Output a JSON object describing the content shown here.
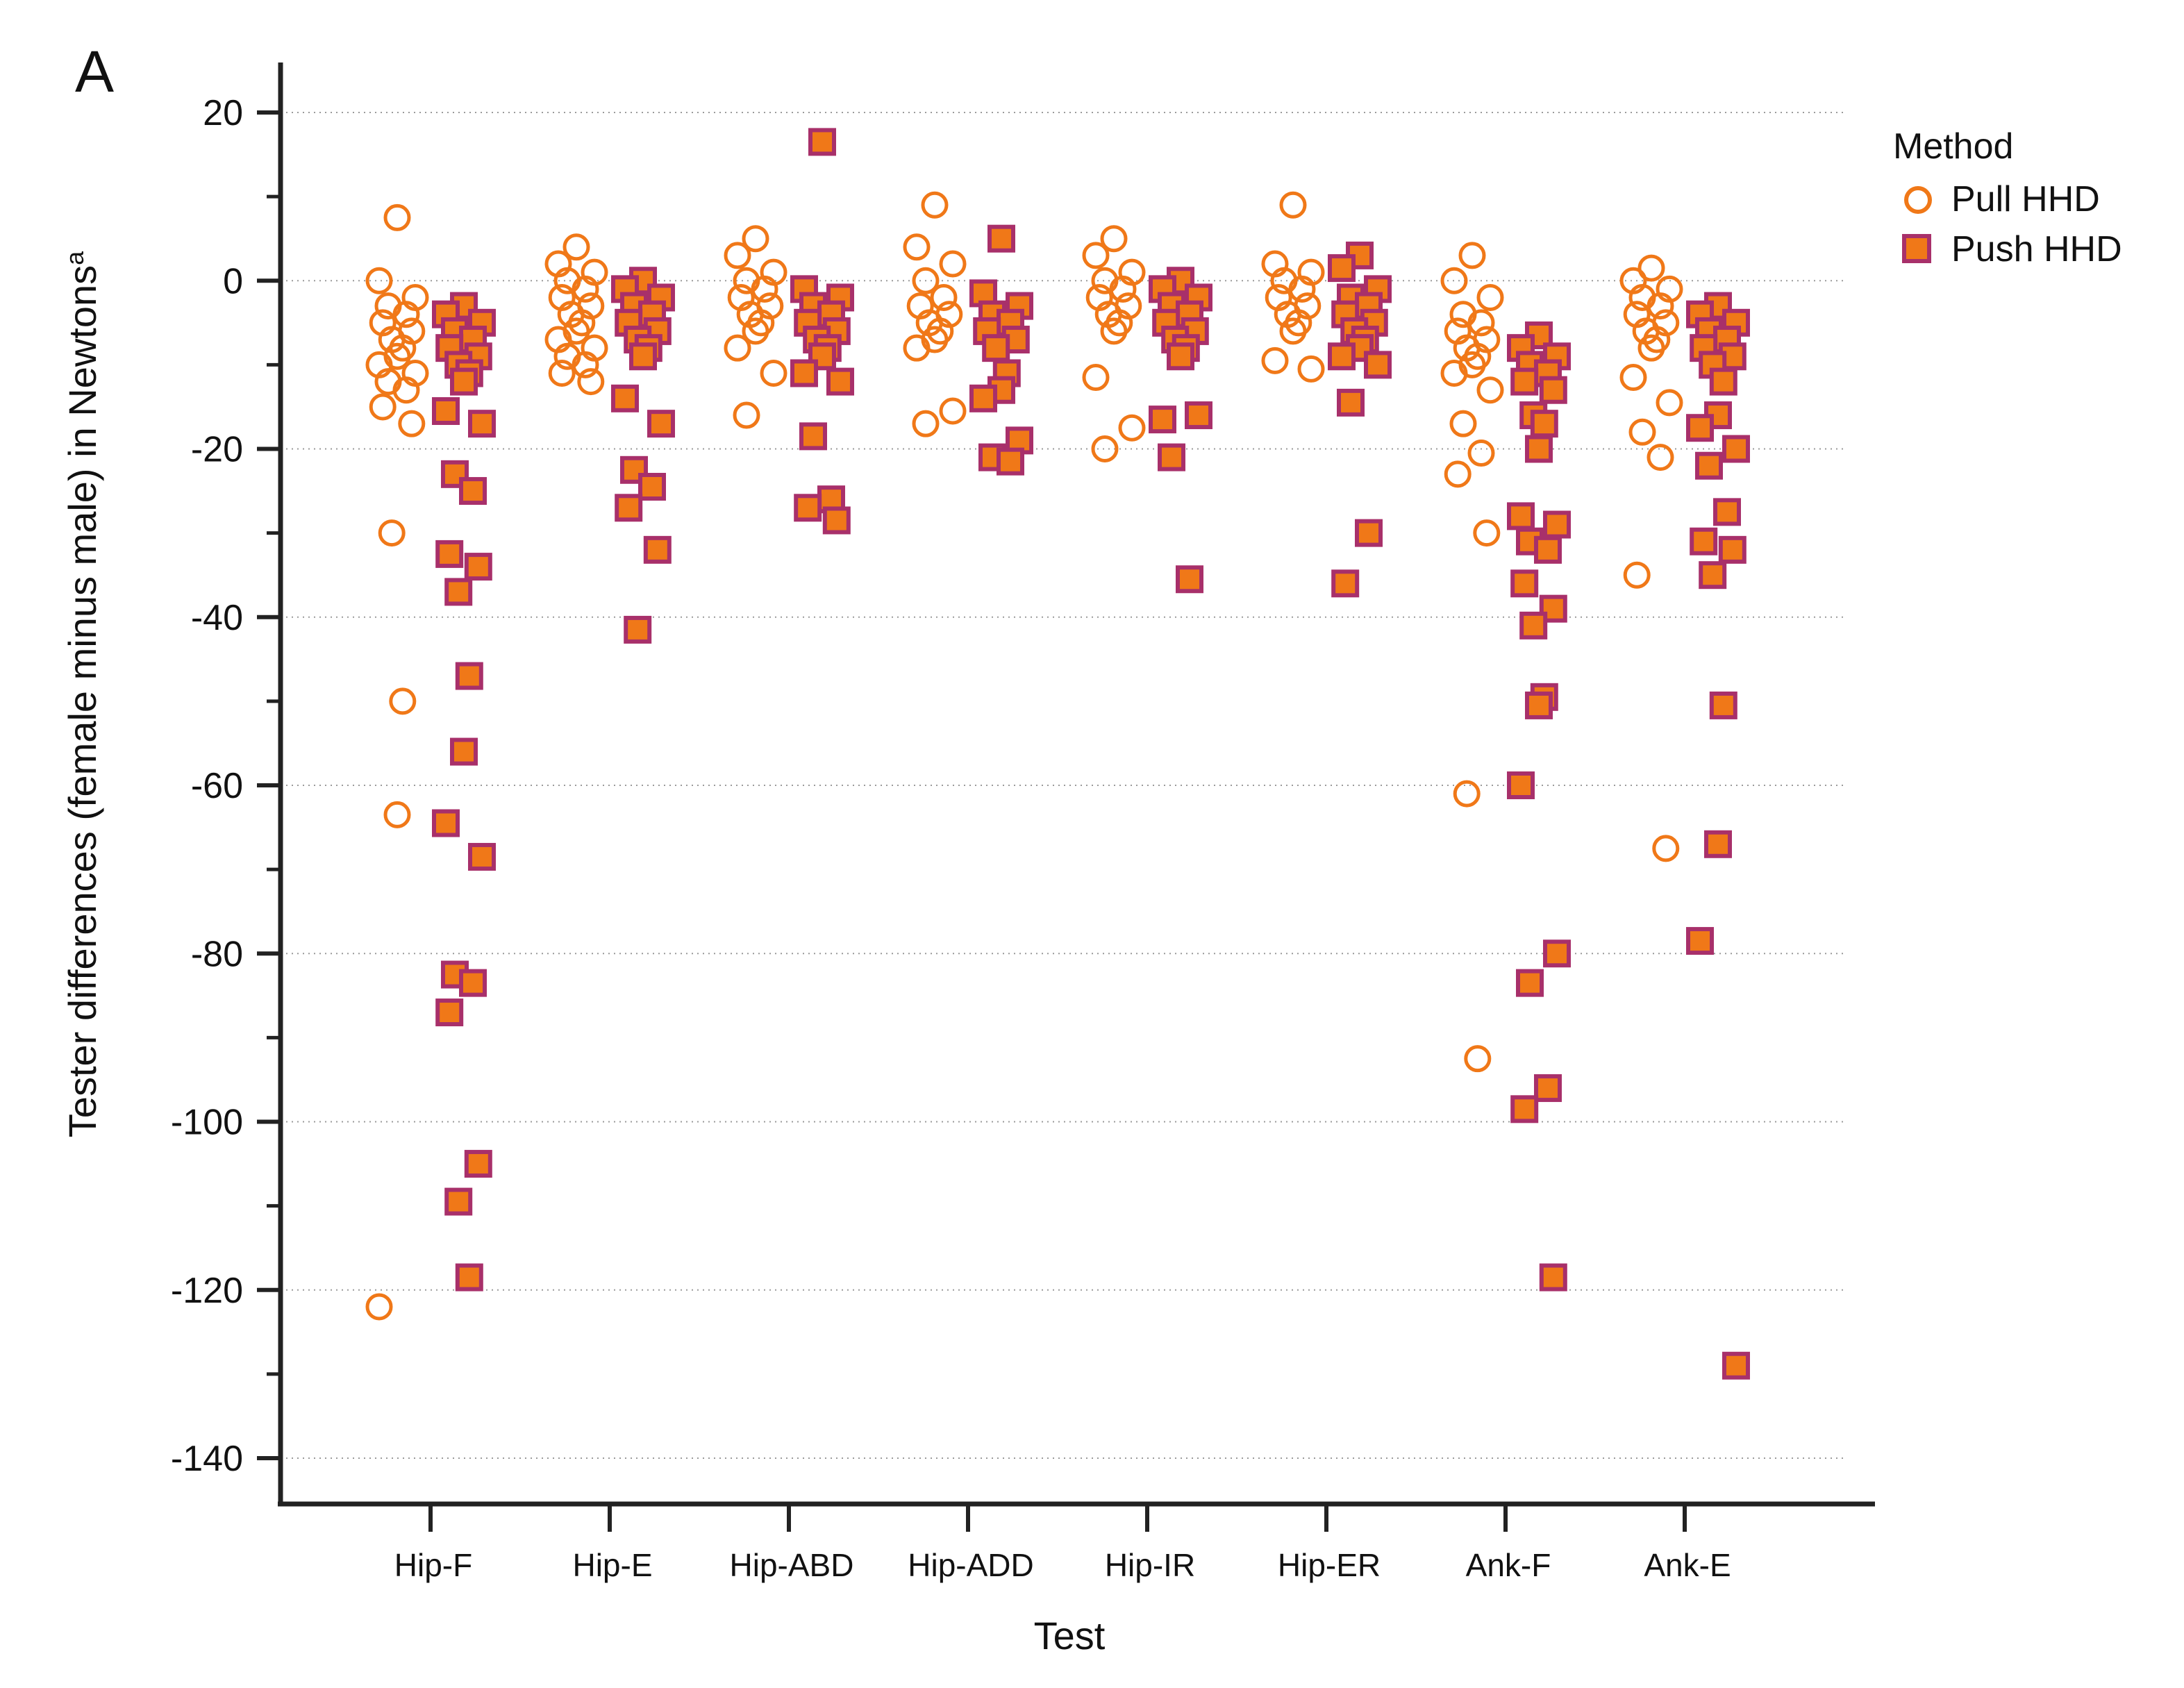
{
  "chart_data": {
    "type": "scatter",
    "panel_label": "A",
    "title": "",
    "xlabel": "Test",
    "ylabel": "Tester differences (female minus male) in Newtons",
    "ylabel_superscript": "a",
    "ylim": [
      -140,
      20
    ],
    "yticks": [
      20,
      0,
      -20,
      -40,
      -60,
      -80,
      -100,
      -120,
      -140
    ],
    "ytick_labels": [
      "20",
      "0",
      "-20",
      "-40",
      "-60",
      "-80",
      "-100",
      "-120",
      "-140"
    ],
    "grid": "horizontal dotted",
    "categories": [
      "Hip-F",
      "Hip-E",
      "Hip-ABD",
      "Hip-ADD",
      "Hip-IR",
      "Hip-ER",
      "Ank-F",
      "Ank-E"
    ],
    "legend": {
      "title": "Method",
      "placement": "top-right",
      "entries": [
        "Pull HHD",
        "Push HHD"
      ]
    },
    "colors": {
      "pull_stroke": "#f07818",
      "push_fill": "#f07818",
      "push_stroke": "#a8306a",
      "axis": "#222222",
      "grid": "#9a9a9a"
    },
    "series": [
      {
        "name": "Pull HHD",
        "marker": "open-circle",
        "values": [
          [
            7.5,
            0,
            -2,
            -3,
            -4,
            -5,
            -6,
            -7,
            -8,
            -9,
            -10,
            -11,
            -12,
            -13,
            -15,
            -17,
            -30,
            -50,
            -63.5,
            -122
          ],
          [
            4,
            2,
            1,
            0,
            -1,
            -2,
            -3,
            -4,
            -5,
            -6,
            -7,
            -8,
            -9,
            -10,
            -11,
            -12
          ],
          [
            5,
            3,
            1,
            0,
            -1,
            -2,
            -3,
            -4,
            -5,
            -6,
            -8,
            -11,
            -16
          ],
          [
            9,
            4,
            2,
            0,
            -2,
            -3,
            -4,
            -5,
            -6,
            -7,
            -8,
            -15.5,
            -17
          ],
          [
            5,
            3,
            1,
            0,
            -1,
            -2,
            -3,
            -4,
            -5,
            -6,
            -11.5,
            -17.5,
            -20
          ],
          [
            9,
            2,
            1,
            0,
            -1,
            -2,
            -3,
            -4,
            -5,
            -6,
            -9.5,
            -10.5
          ],
          [
            3,
            0,
            -2,
            -4,
            -5,
            -6,
            -7,
            -8,
            -9,
            -10,
            -11,
            -13,
            -17,
            -20.5,
            -23,
            -30,
            -61,
            -92.5
          ],
          [
            1.5,
            0,
            -1,
            -2,
            -3,
            -4,
            -5,
            -6,
            -7,
            -8,
            -11.5,
            -14.5,
            -18,
            -21,
            -35,
            -67.5
          ]
        ]
      },
      {
        "name": "Push HHD",
        "marker": "filled-square",
        "values": [
          [
            -3,
            -4,
            -5,
            -6,
            -7,
            -8,
            -9,
            -10,
            -11,
            -12,
            -15.5,
            -17,
            -23,
            -25,
            -32.5,
            -34,
            -37,
            -47,
            -56,
            -64.5,
            -68.5,
            -82.5,
            -83.5,
            -87,
            -105,
            -109.5,
            -118.5
          ],
          [
            0,
            -1,
            -2,
            -3,
            -4,
            -5,
            -6,
            -7,
            -8,
            -9,
            -14,
            -17,
            -22.5,
            -24.5,
            -27,
            -32,
            -41.5
          ],
          [
            16.5,
            -1,
            -2,
            -3,
            -4,
            -5,
            -6,
            -7,
            -8,
            -9,
            -11,
            -12,
            -18.5,
            -26,
            -27,
            -28.5
          ],
          [
            5,
            -1.5,
            -3,
            -4,
            -5,
            -6,
            -7,
            -8,
            -11,
            -13,
            -14,
            -19,
            -21,
            -21.5
          ],
          [
            0,
            -1,
            -2,
            -3,
            -4,
            -5,
            -6,
            -7,
            -8,
            -9,
            -16.5,
            -16,
            -21,
            -35.5
          ],
          [
            3,
            1.5,
            -1,
            -2,
            -3,
            -4,
            -5,
            -6,
            -7,
            -8,
            -9,
            -10,
            -14.5,
            -30,
            -36
          ],
          [
            -6.5,
            -8,
            -9,
            -10,
            -11,
            -12,
            -13,
            -16,
            -17,
            -20,
            -28,
            -29,
            -31,
            -32,
            -36,
            -39,
            -41,
            -49.5,
            -50.5,
            -60,
            -80,
            -83.5,
            -96,
            -98.5,
            -118.5
          ],
          [
            -3,
            -4,
            -5,
            -6,
            -7,
            -8,
            -9,
            -10,
            -12,
            -16,
            -17.5,
            -20,
            -22,
            -27.5,
            -31,
            -32,
            -35,
            -50.5,
            -67,
            -78.5,
            -129
          ]
        ]
      }
    ]
  }
}
